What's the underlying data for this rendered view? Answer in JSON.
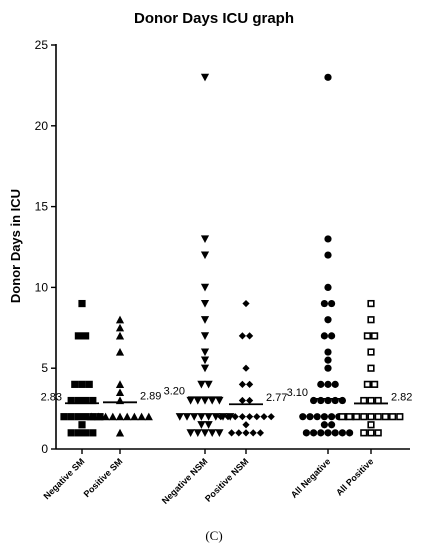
{
  "chart_data": {
    "type": "scatter",
    "title": "Donor Days ICU graph",
    "ylabel": "Donor Days in ICU",
    "xlabel": "",
    "ylim": [
      0,
      25
    ],
    "yticks": [
      0,
      5,
      10,
      15,
      20,
      25
    ],
    "grid": false,
    "panel_label": "(C)",
    "categories": [
      "Negative SM",
      "Positive SM",
      "Negative NSM",
      "Positive NSM",
      "All Negative",
      "All Positive"
    ],
    "series": [
      {
        "category": "Negative SM",
        "marker": "square",
        "mean": 2.83,
        "mean_label": "2.83",
        "values": [
          9,
          7,
          7,
          4,
          4,
          4,
          3,
          3,
          3,
          3,
          2,
          2,
          2,
          2,
          2,
          2,
          1.5,
          1,
          1,
          1,
          1
        ]
      },
      {
        "category": "Positive SM",
        "marker": "triangle-up",
        "mean": 2.89,
        "mean_label": "2.89",
        "values": [
          8,
          7.5,
          7,
          6,
          4,
          3.5,
          3,
          2,
          2,
          2,
          2,
          2,
          2,
          2,
          2,
          2,
          1
        ]
      },
      {
        "category": "Negative NSM",
        "marker": "triangle-down",
        "mean": 3.2,
        "mean_label": "3.20",
        "values": [
          23,
          13,
          12,
          10,
          9,
          8,
          7,
          6,
          5.5,
          5,
          4,
          4,
          3,
          3,
          3,
          3,
          3,
          2,
          2,
          2,
          2,
          2,
          2,
          2,
          2,
          1.5,
          1.5,
          1,
          1,
          1,
          1,
          1
        ]
      },
      {
        "category": "Positive NSM",
        "marker": "diamond",
        "mean": 2.77,
        "mean_label": "2.77",
        "values": [
          9,
          7,
          7,
          5,
          4,
          4,
          3,
          3,
          2,
          2,
          2,
          2,
          2,
          2,
          2,
          2,
          1.5,
          1,
          1,
          1,
          1,
          1
        ]
      },
      {
        "category": "All Negative",
        "marker": "circle",
        "mean": 3.1,
        "mean_label": "3.10",
        "values": [
          23,
          13,
          12,
          10,
          9,
          9,
          8,
          7,
          7,
          6,
          5.5,
          5,
          4,
          4,
          4,
          3,
          3,
          3,
          3,
          3,
          2,
          2,
          2,
          2,
          2,
          2,
          2,
          2,
          1.5,
          1.5,
          1,
          1,
          1,
          1,
          1,
          1,
          1
        ]
      },
      {
        "category": "All Positive",
        "marker": "open-square",
        "mean": 2.82,
        "mean_label": "2.82",
        "values": [
          9,
          8,
          7,
          7,
          6,
          5,
          4,
          4,
          3,
          3,
          3,
          2,
          2,
          2,
          2,
          2,
          2,
          2,
          2,
          2,
          1.5,
          1,
          1,
          1
        ]
      }
    ]
  }
}
